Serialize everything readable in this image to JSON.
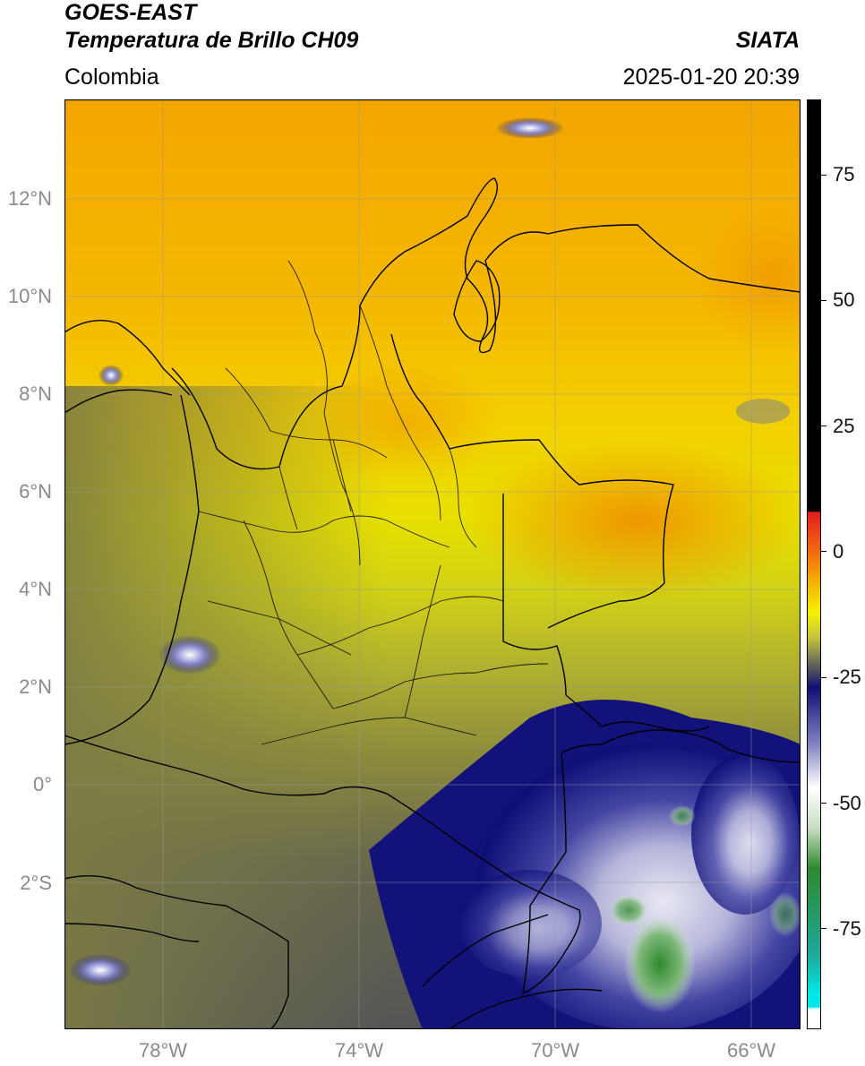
{
  "header": {
    "satellite": "GOES-EAST",
    "product": "Temperatura de Brillo CH09",
    "region": "Colombia",
    "agency": "SIATA",
    "datetime": "2025-01-20 20:39"
  },
  "map": {
    "lon_range": [
      -80,
      -65
    ],
    "lat_range": [
      -5.2,
      14
    ],
    "lon_ticks": [
      "78°W",
      "74°W",
      "70°W",
      "66°W"
    ],
    "lat_ticks": [
      "12°N",
      "10°N",
      "8°N",
      "6°N",
      "4°N",
      "2°N",
      "0°",
      "2°S"
    ],
    "gridlines": true,
    "features": [
      "coastlines",
      "country borders",
      "department borders",
      "brightness temperature field"
    ]
  },
  "colorbar": {
    "orientation": "vertical",
    "position": "right",
    "tick_labels": [
      "75",
      "50",
      "25",
      "0",
      "-25",
      "-50",
      "-75"
    ],
    "tick_values": [
      75,
      50,
      25,
      0,
      -25,
      -50,
      -75
    ],
    "range": [
      -95,
      90
    ],
    "stops": [
      {
        "value": 90,
        "color": "#000000"
      },
      {
        "value": 8,
        "color": "#000000"
      },
      {
        "value": 7.9,
        "color": "#e11e1e"
      },
      {
        "value": 0,
        "color": "#f36a10"
      },
      {
        "value": -6,
        "color": "#f4b000"
      },
      {
        "value": -12,
        "color": "#f7f000"
      },
      {
        "value": -17,
        "color": "#c5c53a"
      },
      {
        "value": -22,
        "color": "#6b6b58"
      },
      {
        "value": -27,
        "color": "#101074"
      },
      {
        "value": -38,
        "color": "#7f7fc0"
      },
      {
        "value": -47,
        "color": "#ffffff"
      },
      {
        "value": -55,
        "color": "#c6ddc0"
      },
      {
        "value": -63,
        "color": "#2e8a2e"
      },
      {
        "value": -80,
        "color": "#1ea89a"
      },
      {
        "value": -88,
        "color": "#00e8e8"
      },
      {
        "value": -90.5,
        "color": "#00e8e8"
      },
      {
        "value": -91,
        "color": "#ffffff"
      },
      {
        "value": -95,
        "color": "#ffffff"
      }
    ]
  }
}
